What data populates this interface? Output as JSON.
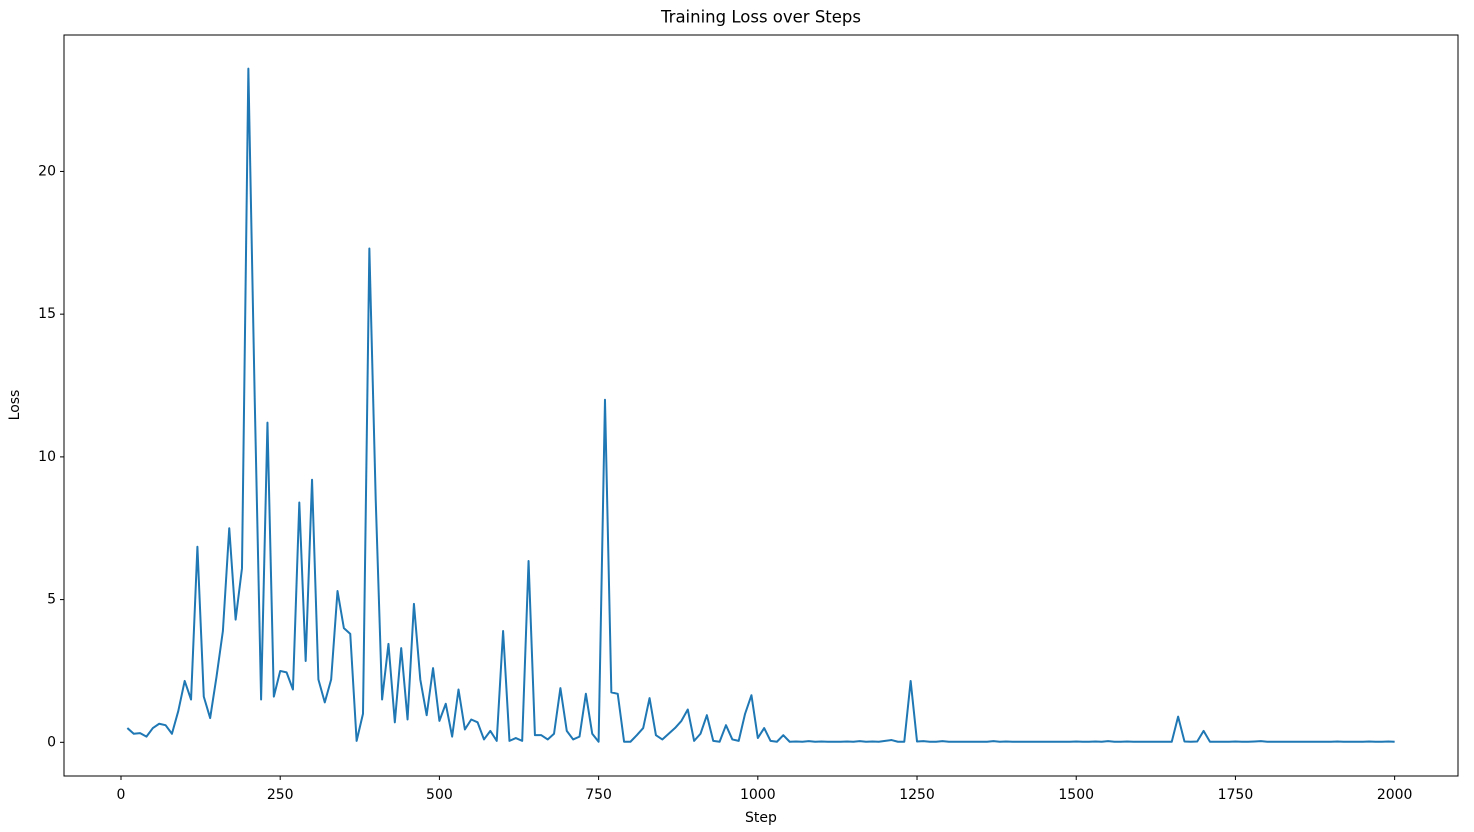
{
  "chart_data": {
    "type": "line",
    "title": "Training Loss over Steps",
    "x_label": "Step",
    "y_label": "Loss",
    "color": "#1f77b4",
    "grid": false,
    "xlim": [
      -89.5,
      2099.5
    ],
    "ylim": [
      -1.18,
      24.78
    ],
    "xticks": [
      0,
      250,
      500,
      750,
      1000,
      1250,
      1500,
      1750,
      2000
    ],
    "yticks": [
      0,
      5,
      10,
      15,
      20
    ],
    "x": [
      10,
      20,
      30,
      40,
      50,
      60,
      70,
      80,
      90,
      100,
      110,
      120,
      130,
      140,
      150,
      160,
      170,
      180,
      190,
      200,
      210,
      220,
      230,
      240,
      250,
      260,
      270,
      280,
      290,
      300,
      310,
      320,
      330,
      340,
      350,
      360,
      370,
      380,
      390,
      400,
      410,
      420,
      430,
      440,
      450,
      460,
      470,
      480,
      490,
      500,
      510,
      520,
      530,
      540,
      550,
      560,
      570,
      580,
      590,
      600,
      610,
      620,
      630,
      640,
      650,
      660,
      670,
      680,
      690,
      700,
      710,
      720,
      730,
      740,
      750,
      760,
      770,
      780,
      790,
      800,
      810,
      820,
      830,
      840,
      850,
      860,
      870,
      880,
      890,
      900,
      910,
      920,
      930,
      940,
      950,
      960,
      970,
      980,
      990,
      1000,
      1010,
      1020,
      1030,
      1040,
      1050,
      1060,
      1070,
      1080,
      1090,
      1100,
      1110,
      1120,
      1130,
      1140,
      1150,
      1160,
      1170,
      1180,
      1190,
      1200,
      1210,
      1220,
      1230,
      1240,
      1250,
      1260,
      1270,
      1280,
      1290,
      1300,
      1310,
      1320,
      1330,
      1340,
      1350,
      1360,
      1370,
      1380,
      1390,
      1400,
      1410,
      1420,
      1430,
      1440,
      1450,
      1460,
      1470,
      1480,
      1490,
      1500,
      1510,
      1520,
      1530,
      1540,
      1550,
      1560,
      1570,
      1580,
      1590,
      1600,
      1610,
      1620,
      1630,
      1640,
      1650,
      1660,
      1670,
      1680,
      1690,
      1700,
      1710,
      1720,
      1730,
      1740,
      1750,
      1760,
      1770,
      1780,
      1790,
      1800,
      1810,
      1820,
      1830,
      1840,
      1850,
      1860,
      1870,
      1880,
      1890,
      1900,
      1910,
      1920,
      1930,
      1940,
      1950,
      1960,
      1970,
      1980,
      1990,
      2000
    ],
    "values": [
      0.5,
      0.3,
      0.32,
      0.2,
      0.5,
      0.65,
      0.6,
      0.3,
      1.1,
      2.15,
      1.5,
      6.85,
      1.6,
      0.85,
      2.3,
      3.9,
      7.5,
      4.3,
      6.1,
      23.6,
      12,
      1.5,
      11.2,
      1.6,
      2.5,
      2.45,
      1.85,
      8.4,
      2.85,
      9.2,
      2.2,
      1.4,
      2.2,
      5.3,
      4.0,
      3.8,
      0.05,
      1.0,
      17.3,
      8.5,
      1.5,
      3.45,
      0.7,
      3.3,
      0.8,
      4.85,
      2.2,
      0.95,
      2.6,
      0.75,
      1.35,
      0.2,
      1.85,
      0.45,
      0.8,
      0.7,
      0.1,
      0.4,
      0.05,
      3.9,
      0.05,
      0.15,
      0.05,
      6.35,
      0.25,
      0.25,
      0.1,
      0.3,
      1.9,
      0.4,
      0.1,
      0.2,
      1.7,
      0.3,
      0.02,
      12.0,
      1.75,
      1.7,
      0.02,
      0.02,
      0.25,
      0.5,
      1.55,
      0.25,
      0.1,
      0.3,
      0.5,
      0.75,
      1.15,
      0.05,
      0.3,
      0.95,
      0.05,
      0.02,
      0.6,
      0.1,
      0.05,
      1.0,
      1.65,
      0.15,
      0.5,
      0.05,
      0.02,
      0.25,
      0.02,
      0.03,
      0.02,
      0.04,
      0.02,
      0.03,
      0.02,
      0.02,
      0.02,
      0.03,
      0.02,
      0.04,
      0.02,
      0.03,
      0.02,
      0.05,
      0.08,
      0.02,
      0.02,
      2.15,
      0.03,
      0.04,
      0.02,
      0.02,
      0.04,
      0.02,
      0.02,
      0.02,
      0.02,
      0.02,
      0.02,
      0.02,
      0.04,
      0.02,
      0.03,
      0.02,
      0.02,
      0.02,
      0.02,
      0.02,
      0.02,
      0.02,
      0.02,
      0.02,
      0.02,
      0.03,
      0.02,
      0.02,
      0.03,
      0.02,
      0.04,
      0.02,
      0.02,
      0.03,
      0.02,
      0.02,
      0.02,
      0.02,
      0.02,
      0.02,
      0.02,
      0.9,
      0.03,
      0.02,
      0.03,
      0.4,
      0.02,
      0.02,
      0.02,
      0.02,
      0.03,
      0.02,
      0.02,
      0.03,
      0.04,
      0.02,
      0.02,
      0.02,
      0.02,
      0.02,
      0.02,
      0.02,
      0.02,
      0.02,
      0.02,
      0.02,
      0.03,
      0.02,
      0.02,
      0.02,
      0.02,
      0.03,
      0.02,
      0.02,
      0.03,
      0.02
    ]
  }
}
